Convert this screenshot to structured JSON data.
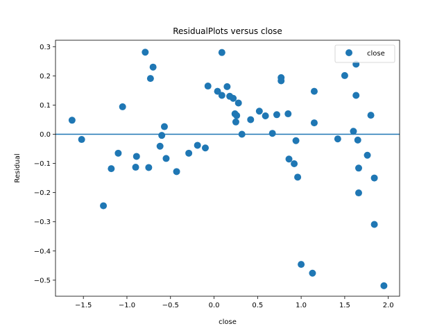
{
  "chart_data": {
    "type": "scatter",
    "title": "ResidualPlots versus close",
    "xlabel": "close",
    "ylabel": "Residual",
    "xlim": [
      -1.82,
      2.13
    ],
    "ylim": [
      -0.555,
      0.322
    ],
    "xticks": [
      -1.5,
      -1.0,
      -0.5,
      0.0,
      0.5,
      1.0,
      1.5,
      2.0
    ],
    "xtick_labels": [
      "−1.5",
      "−1.0",
      "−0.5",
      "0.0",
      "0.5",
      "1.0",
      "1.5",
      "2.0"
    ],
    "yticks": [
      -0.5,
      -0.4,
      -0.3,
      -0.2,
      -0.1,
      0.0,
      0.1,
      0.2,
      0.3
    ],
    "ytick_labels": [
      "−0.5",
      "−0.4",
      "−0.3",
      "−0.2",
      "−0.1",
      "0.0",
      "0.1",
      "0.2",
      "0.3"
    ],
    "reference_line_y": 0.0,
    "grid": false,
    "legend_position": "top-right",
    "colors": {
      "points": "#1f77b4",
      "line": "#1f77b4"
    },
    "series": [
      {
        "name": "close",
        "points": [
          {
            "x": -1.63,
            "y": 0.048
          },
          {
            "x": -1.52,
            "y": -0.018
          },
          {
            "x": -1.27,
            "y": -0.245
          },
          {
            "x": -1.18,
            "y": -0.118
          },
          {
            "x": -1.1,
            "y": -0.065
          },
          {
            "x": -1.05,
            "y": 0.094
          },
          {
            "x": -0.9,
            "y": -0.113
          },
          {
            "x": -0.89,
            "y": -0.076
          },
          {
            "x": -0.79,
            "y": 0.281
          },
          {
            "x": -0.75,
            "y": -0.114
          },
          {
            "x": -0.73,
            "y": 0.191
          },
          {
            "x": -0.7,
            "y": 0.23
          },
          {
            "x": -0.62,
            "y": -0.041
          },
          {
            "x": -0.6,
            "y": -0.004
          },
          {
            "x": -0.57,
            "y": 0.026
          },
          {
            "x": -0.55,
            "y": -0.083
          },
          {
            "x": -0.43,
            "y": -0.128
          },
          {
            "x": -0.29,
            "y": -0.065
          },
          {
            "x": -0.19,
            "y": -0.038
          },
          {
            "x": -0.1,
            "y": -0.047
          },
          {
            "x": -0.07,
            "y": 0.165
          },
          {
            "x": 0.04,
            "y": 0.147
          },
          {
            "x": 0.09,
            "y": 0.133
          },
          {
            "x": 0.09,
            "y": 0.28
          },
          {
            "x": 0.15,
            "y": 0.163
          },
          {
            "x": 0.18,
            "y": 0.13
          },
          {
            "x": 0.22,
            "y": 0.123
          },
          {
            "x": 0.24,
            "y": 0.07
          },
          {
            "x": 0.25,
            "y": 0.042
          },
          {
            "x": 0.26,
            "y": 0.064
          },
          {
            "x": 0.28,
            "y": 0.107
          },
          {
            "x": 0.32,
            "y": 0.0
          },
          {
            "x": 0.42,
            "y": 0.05
          },
          {
            "x": 0.52,
            "y": 0.079
          },
          {
            "x": 0.59,
            "y": 0.063
          },
          {
            "x": 0.67,
            "y": 0.003
          },
          {
            "x": 0.72,
            "y": 0.067
          },
          {
            "x": 0.77,
            "y": 0.194
          },
          {
            "x": 0.77,
            "y": 0.183
          },
          {
            "x": 0.85,
            "y": 0.07
          },
          {
            "x": 0.86,
            "y": -0.085
          },
          {
            "x": 0.92,
            "y": -0.101
          },
          {
            "x": 0.94,
            "y": -0.022
          },
          {
            "x": 0.96,
            "y": -0.147
          },
          {
            "x": 1.0,
            "y": -0.446
          },
          {
            "x": 1.13,
            "y": -0.476
          },
          {
            "x": 1.15,
            "y": 0.147
          },
          {
            "x": 1.15,
            "y": 0.039
          },
          {
            "x": 1.42,
            "y": -0.016
          },
          {
            "x": 1.5,
            "y": 0.201
          },
          {
            "x": 1.6,
            "y": 0.01
          },
          {
            "x": 1.63,
            "y": 0.24
          },
          {
            "x": 1.63,
            "y": 0.133
          },
          {
            "x": 1.65,
            "y": -0.02
          },
          {
            "x": 1.66,
            "y": -0.116
          },
          {
            "x": 1.66,
            "y": -0.201
          },
          {
            "x": 1.76,
            "y": -0.072
          },
          {
            "x": 1.8,
            "y": 0.065
          },
          {
            "x": 1.84,
            "y": -0.15
          },
          {
            "x": 1.84,
            "y": -0.309
          },
          {
            "x": 1.95,
            "y": -0.519
          }
        ]
      }
    ]
  }
}
